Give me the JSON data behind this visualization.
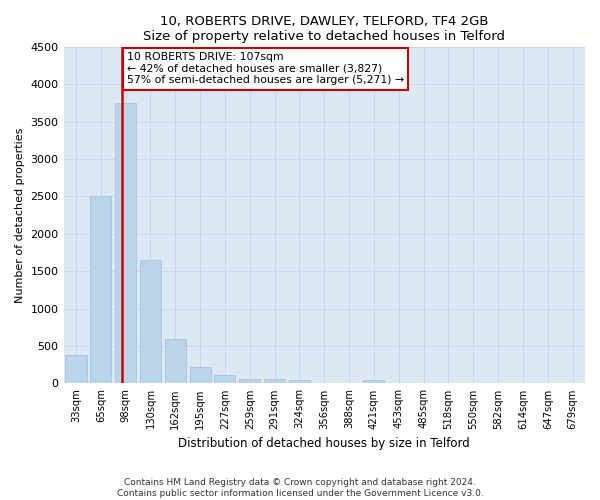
{
  "title1": "10, ROBERTS DRIVE, DAWLEY, TELFORD, TF4 2GB",
  "title2": "Size of property relative to detached houses in Telford",
  "xlabel": "Distribution of detached houses by size in Telford",
  "ylabel": "Number of detached properties",
  "categories": [
    "33sqm",
    "65sqm",
    "98sqm",
    "130sqm",
    "162sqm",
    "195sqm",
    "227sqm",
    "259sqm",
    "291sqm",
    "324sqm",
    "356sqm",
    "388sqm",
    "421sqm",
    "453sqm",
    "485sqm",
    "518sqm",
    "550sqm",
    "582sqm",
    "614sqm",
    "647sqm",
    "679sqm"
  ],
  "values": [
    375,
    2500,
    3750,
    1650,
    600,
    225,
    110,
    60,
    55,
    50,
    0,
    0,
    50,
    0,
    0,
    0,
    0,
    0,
    0,
    0,
    0
  ],
  "bar_color": "#bad4ea",
  "bar_edge_color": "#9dbfe0",
  "vline_color": "#cc0000",
  "annotation_text": "10 ROBERTS DRIVE: 107sqm\n← 42% of detached houses are smaller (3,827)\n57% of semi-detached houses are larger (5,271) →",
  "annotation_box_color": "#ffffff",
  "annotation_box_edge": "#cc0000",
  "ylim": [
    0,
    4500
  ],
  "yticks": [
    0,
    500,
    1000,
    1500,
    2000,
    2500,
    3000,
    3500,
    4000,
    4500
  ],
  "grid_color": "#c8d8ea",
  "bg_color": "#dce9f5",
  "footnote1": "Contains HM Land Registry data © Crown copyright and database right 2024.",
  "footnote2": "Contains public sector information licensed under the Government Licence v3.0."
}
